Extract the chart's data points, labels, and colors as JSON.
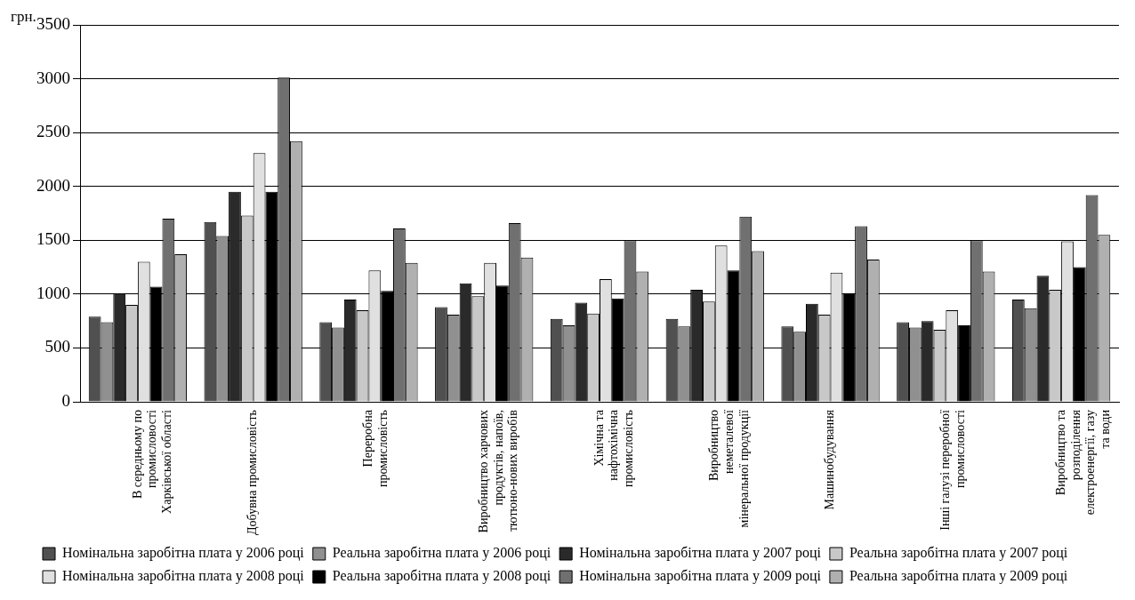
{
  "chart_data": {
    "type": "bar",
    "ylabel": "грн.",
    "categories": [
      "В середньому по промисловості Харківської області",
      "Добувна промисловість",
      "Переробна промисловість",
      "Виробництво харчових продуктів, напоїв, тютюно-нових виробів",
      "Хімічна та нафтохімічна промисловість",
      "Виробництво неметалевої мінеральної продукції",
      "Машинобудування",
      "Інші галузі переробної промисловості",
      "Виробництво та розподілення електроенергії, газу та води"
    ],
    "series": [
      {
        "name": "Номінальна заробітна плата у 2006 році",
        "color": "#505050",
        "values": [
          790,
          1670,
          740,
          880,
          770,
          770,
          700,
          740,
          950
        ]
      },
      {
        "name": "Реальна заробітна плата у 2006 році",
        "color": "#909090",
        "values": [
          740,
          1540,
          690,
          810,
          710,
          700,
          650,
          690,
          870
        ]
      },
      {
        "name": "Номінальна заробітна плата у 2007 році",
        "color": "#2a2a2a",
        "values": [
          1010,
          1950,
          950,
          1100,
          920,
          1040,
          910,
          750,
          1170
        ]
      },
      {
        "name": "Реальна заробітна плата у 2007 році",
        "color": "#c8c8c8",
        "values": [
          900,
          1730,
          850,
          980,
          820,
          930,
          810,
          670,
          1040
        ]
      },
      {
        "name": "Номінальна заробітна плата у 2008 році",
        "color": "#e0e0e0",
        "values": [
          1300,
          2310,
          1220,
          1290,
          1140,
          1450,
          1200,
          850,
          1490
        ]
      },
      {
        "name": "Реальна заробітна плата у 2008 році",
        "color": "#000000",
        "values": [
          1070,
          1950,
          1030,
          1080,
          960,
          1220,
          1010,
          710,
          1250
        ]
      },
      {
        "name": "Номінальна заробітна плата у 2009 році",
        "color": "#707070",
        "values": [
          1700,
          3010,
          1610,
          1660,
          1500,
          1720,
          1630,
          1500,
          1920
        ]
      },
      {
        "name": "Реальна заробітна плата у 2009 році",
        "color": "#b0b0b0",
        "values": [
          1370,
          2420,
          1290,
          1340,
          1210,
          1400,
          1320,
          1210,
          1550
        ]
      }
    ],
    "ylim": [
      0,
      3500
    ],
    "yticks": [
      0,
      500,
      1000,
      1500,
      2000,
      2500,
      3000,
      3500
    ],
    "grid": "y",
    "legend": "bottom"
  }
}
